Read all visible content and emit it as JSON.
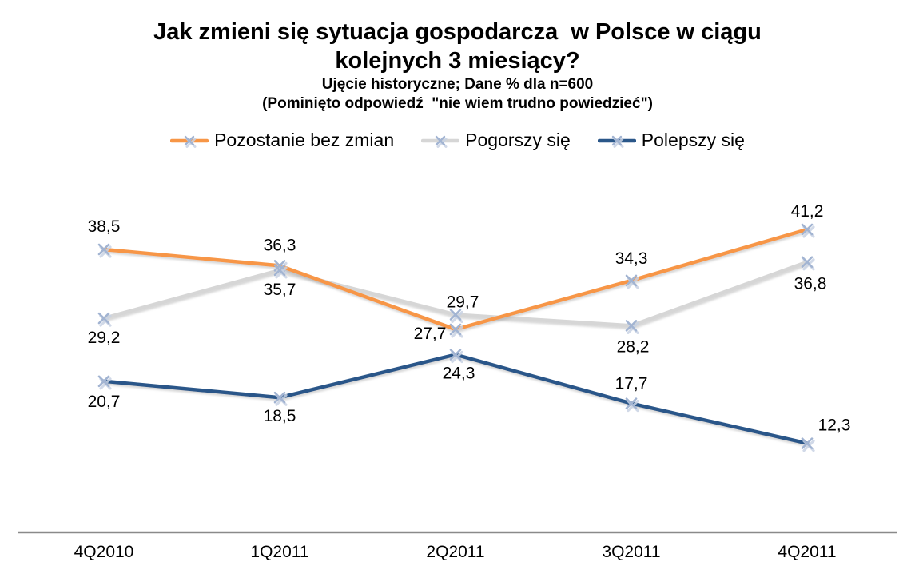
{
  "title": {
    "line1": "Jak zmieni się sytuacja gospodarcza  w Polsce w ciągu",
    "line2": "kolejnych 3 miesiący?",
    "subtitle1": "Ujęcie historyczne; Dane % dla n=600",
    "subtitle2": "(Pominięto odpowiedź  \"nie wiem trudno powiedzieć\")"
  },
  "chart_data": {
    "type": "line",
    "title": "Jak zmieni się sytuacja gospodarcza w Polsce w ciągu kolejnych 3 miesiący?",
    "subtitle": "Ujęcie historyczne; Dane % dla n=600 (Pominięto odpowiedź \"nie wiem trudno powiedzieć\")",
    "categories": [
      "4Q2010",
      "1Q2011",
      "2Q2011",
      "3Q2011",
      "4Q2011"
    ],
    "series": [
      {
        "name": "Pozostanie bez zmian",
        "color": "#F79646",
        "values": [
          38.5,
          36.3,
          27.7,
          34.3,
          41.2
        ]
      },
      {
        "name": "Pogorszy się",
        "color": "#D6D6D6",
        "values": [
          29.2,
          35.7,
          29.7,
          28.2,
          36.8
        ]
      },
      {
        "name": "Polepszy się",
        "color": "#2A5789",
        "values": [
          20.7,
          18.5,
          24.3,
          17.7,
          12.3
        ]
      }
    ],
    "value_format": "comma-decimal",
    "marker": {
      "shape": "x",
      "color": "#A2B4D2",
      "shadow_color": "#C9D3E4"
    },
    "legend_position": "top",
    "grid": false,
    "y_axis_visible": false,
    "x_axis_line_color": "#8A8A8A",
    "label_color": "#000000",
    "ylim": [
      10,
      43
    ]
  }
}
